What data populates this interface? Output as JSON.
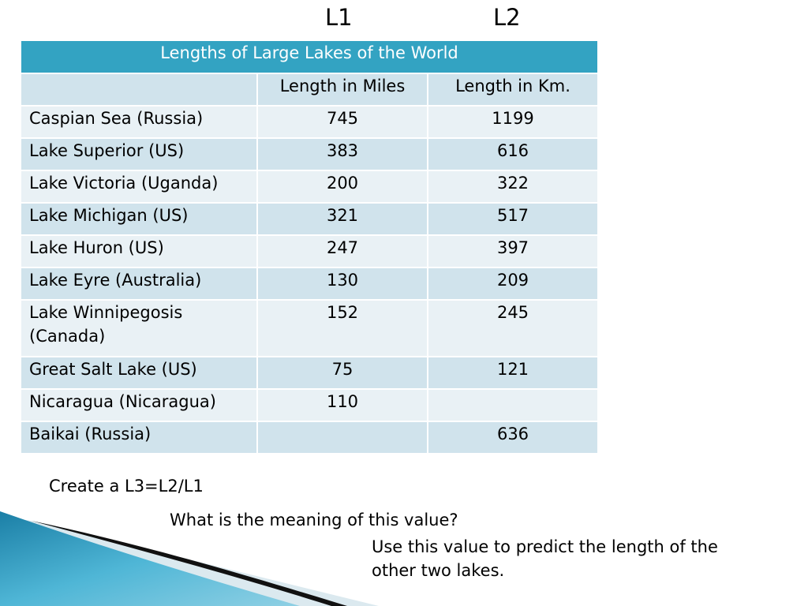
{
  "column_labels": {
    "l1": "L1",
    "l2": "L2"
  },
  "table": {
    "title": "Lengths of Large Lakes of the World",
    "headers": [
      "",
      "Length in Miles",
      "Length in Km."
    ],
    "rows": [
      {
        "lake": "Caspian Sea (Russia)",
        "miles": "745",
        "km": "1199"
      },
      {
        "lake": "Lake Superior (US)",
        "miles": "383",
        "km": "616"
      },
      {
        "lake": "Lake Victoria (Uganda)",
        "miles": "200",
        "km": "322"
      },
      {
        "lake": "Lake Michigan (US)",
        "miles": "321",
        "km": "517"
      },
      {
        "lake": "Lake Huron (US)",
        "miles": "247",
        "km": "397"
      },
      {
        "lake": "Lake Eyre (Australia)",
        "miles": "130",
        "km": "209"
      },
      {
        "lake": "Lake Winnipegosis (Canada)",
        "miles": "152",
        "km": "245"
      },
      {
        "lake": "Great Salt Lake (US)",
        "miles": "75",
        "km": "121"
      },
      {
        "lake": "Nicaragua (Nicaragua)",
        "miles": "110",
        "km": ""
      },
      {
        "lake": "Baikai (Russia)",
        "miles": "",
        "km": "636"
      }
    ]
  },
  "instructions": {
    "step1": "Create a L3=L2/L1",
    "step2": "What is the meaning of this value?",
    "step3": "Use this value to predict the length of the other two lakes."
  },
  "colors": {
    "title_bg": "#33a3c2",
    "row_dark": "#d0e3ec",
    "row_light": "#e9f1f5"
  }
}
